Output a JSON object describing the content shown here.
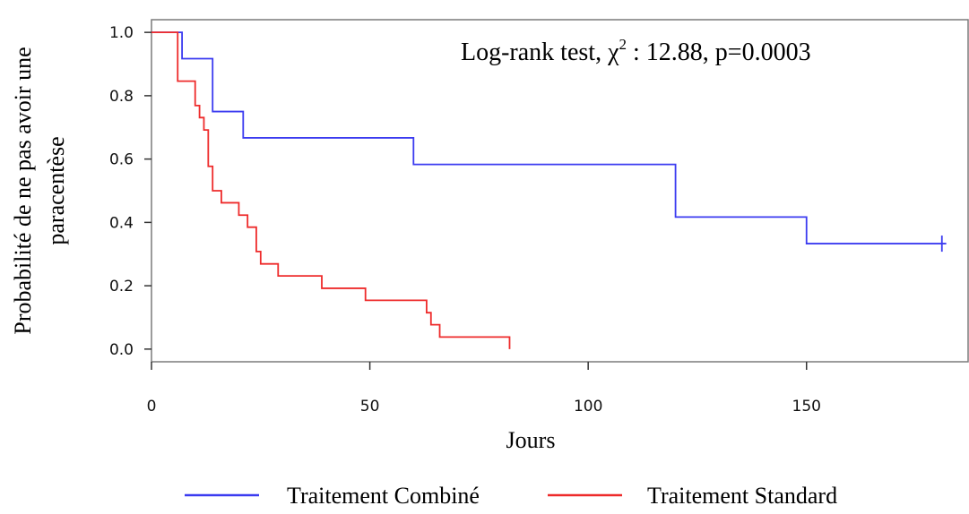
{
  "chart_data": {
    "type": "line",
    "xlabel": "Jours",
    "ylabel_line1": "Probabilité de ne pas avoir une",
    "ylabel_line2": "paracentèse",
    "xlim": [
      0,
      187
    ],
    "ylim": [
      -0.04,
      1.04
    ],
    "x_ticks": [
      0,
      50,
      100,
      150
    ],
    "y_ticks": [
      0.0,
      0.2,
      0.4,
      0.6,
      0.8,
      1.0
    ],
    "y_tick_labels": [
      "0.0",
      "0.2",
      "0.4",
      "0.6",
      "0.8",
      "1.0"
    ],
    "annotation": {
      "prefix": "Log-rank test, ",
      "chi": "χ",
      "superscript": "2",
      "suffix": " : 12.88, p=0.0003"
    },
    "grid": false,
    "legend_position": "bottom",
    "series": [
      {
        "name": "Traitement Combiné",
        "color": "#3b3bf0",
        "x": [
          0,
          7,
          14,
          21,
          60,
          120,
          150,
          182
        ],
        "y": [
          1.0,
          0.917,
          0.75,
          0.667,
          0.583,
          0.417,
          0.333,
          0.333
        ],
        "censor": [
          [
            181,
            0.333
          ]
        ]
      },
      {
        "name": "Traitement Standard",
        "color": "#ee2b2b",
        "x": [
          0,
          6,
          10,
          11,
          12,
          13,
          14,
          16,
          20,
          22,
          24,
          25,
          29,
          39,
          49,
          63,
          64,
          66,
          82
        ],
        "y": [
          1.0,
          0.846,
          0.769,
          0.731,
          0.692,
          0.577,
          0.5,
          0.462,
          0.423,
          0.385,
          0.308,
          0.269,
          0.231,
          0.192,
          0.154,
          0.115,
          0.077,
          0.038,
          0.0
        ],
        "censor": []
      }
    ]
  }
}
